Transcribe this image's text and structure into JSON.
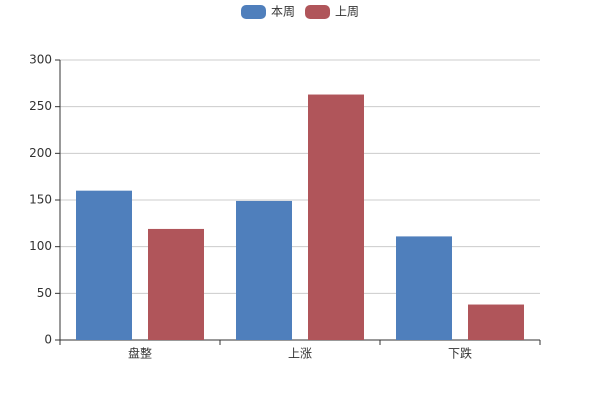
{
  "chart_data": {
    "type": "bar",
    "categories": [
      "盘整",
      "上涨",
      "下跌"
    ],
    "series": [
      {
        "name": "本周",
        "color": "#4f7fbc",
        "values": [
          160,
          149,
          111
        ]
      },
      {
        "name": "上周",
        "color": "#b0555a",
        "values": [
          119,
          263,
          38
        ]
      }
    ],
    "ylim": [
      0,
      300
    ],
    "yticks": [
      0,
      50,
      100,
      150,
      200,
      250,
      300
    ],
    "grid": true,
    "legend": "top"
  }
}
